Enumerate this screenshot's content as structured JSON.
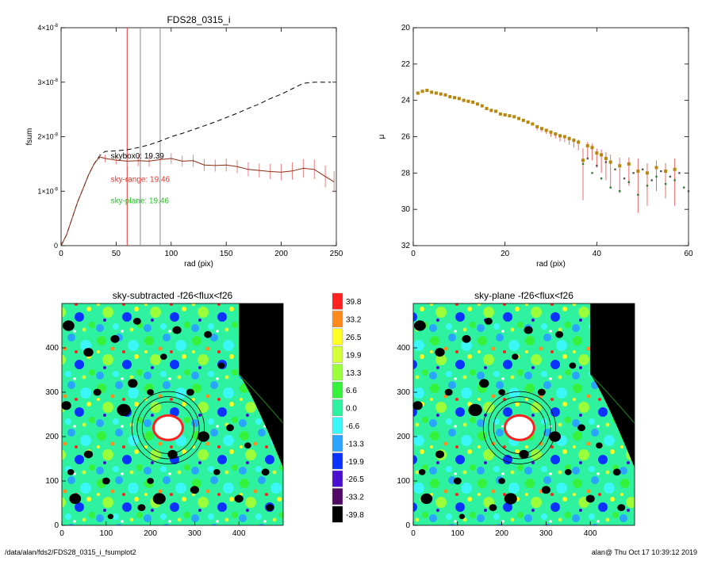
{
  "footer": {
    "path": "/data/alan/fds2/FDS28_0315_i_fsumplot2",
    "stamp": "alan@  Thu Oct 17 10:39:12 2019"
  },
  "chart_data": [
    {
      "type": "line",
      "title": "FDS28_0315_i",
      "xlabel": "rad (pix)",
      "ylabel": "fsum",
      "xlim": [
        0,
        250
      ],
      "ylim": [
        0,
        4e-08
      ],
      "xticks": [
        0,
        50,
        100,
        150,
        200,
        250
      ],
      "yticks": [
        {
          "value": 0,
          "mant": "0",
          "exp": ""
        },
        {
          "value": 1e-08,
          "mant": "1×10",
          "exp": "-8"
        },
        {
          "value": 2e-08,
          "mant": "2×10",
          "exp": "-8"
        },
        {
          "value": 3e-08,
          "mant": "3×10",
          "exp": "-8"
        },
        {
          "value": 4e-08,
          "mant": "4×10",
          "exp": "-8"
        }
      ],
      "vlines": [
        {
          "x": 60,
          "color": "#e8322d"
        },
        {
          "x": 72,
          "color": "#8c8c8c"
        },
        {
          "x": 90,
          "color": "#8c8c8c"
        }
      ],
      "annotations": [
        {
          "text": "skybox0: 19.39",
          "color": "#000000",
          "x": 35,
          "y": 1.6e-08
        },
        {
          "text": "sky-range: 19.46",
          "color": "#e8322d",
          "x": 35,
          "y": 1.17e-08
        },
        {
          "text": "sky-plane: 19.46",
          "color": "#27c327",
          "x": 35,
          "y": 7.8e-09
        }
      ],
      "series": [
        {
          "style": "dashed",
          "color": "#000000",
          "x": [
            0,
            5,
            10,
            15,
            20,
            25,
            30,
            35,
            40,
            50,
            60,
            70,
            80,
            90,
            100,
            110,
            120,
            130,
            140,
            150,
            160,
            170,
            180,
            190,
            200,
            210,
            220,
            230,
            240,
            245
          ],
          "y": [
            0,
            2e-09,
            5e-09,
            8e-09,
            1.05e-08,
            1.3e-08,
            1.5e-08,
            1.65e-08,
            1.73e-08,
            1.74e-08,
            1.76e-08,
            1.8e-08,
            1.85e-08,
            1.92e-08,
            2e-08,
            2.06e-08,
            2.13e-08,
            2.2e-08,
            2.27e-08,
            2.35e-08,
            2.43e-08,
            2.52e-08,
            2.6e-08,
            2.7e-08,
            2.78e-08,
            2.88e-08,
            2.98e-08,
            3e-08,
            3e-08,
            3e-08
          ]
        },
        {
          "style": "solid",
          "color": "#8b2a10",
          "errors": true,
          "error_color": "#f08080",
          "x": [
            0,
            5,
            10,
            15,
            20,
            25,
            30,
            35,
            40,
            50,
            60,
            70,
            80,
            90,
            100,
            110,
            120,
            130,
            140,
            150,
            160,
            170,
            180,
            190,
            200,
            210,
            220,
            230,
            240,
            248
          ],
          "y": [
            0,
            2e-09,
            5e-09,
            8e-09,
            1.05e-08,
            1.3e-08,
            1.5e-08,
            1.63e-08,
            1.6e-08,
            1.57e-08,
            1.55e-08,
            1.56e-08,
            1.55e-08,
            1.58e-08,
            1.6e-08,
            1.55e-08,
            1.56e-08,
            1.48e-08,
            1.47e-08,
            1.48e-08,
            1.45e-08,
            1.4e-08,
            1.38e-08,
            1.36e-08,
            1.35e-08,
            1.37e-08,
            1.42e-08,
            1.4e-08,
            1.27e-08,
            1.17e-08
          ],
          "err": [
            0,
            0,
            0,
            0,
            0,
            0,
            0,
            5e-10,
            7e-10,
            8e-10,
            9e-10,
            1e-09,
            1e-09,
            1e-09,
            1e-09,
            1e-09,
            1.1e-09,
            1.1e-09,
            1.1e-09,
            1.2e-09,
            1.2e-09,
            1.3e-09,
            1.3e-09,
            1.4e-09,
            1.5e-09,
            1.6e-09,
            1.7e-09,
            1.8e-09,
            2e-09,
            2e-09
          ]
        }
      ]
    },
    {
      "type": "scatter",
      "title": "",
      "xlabel": "rad (pix)",
      "ylabel": "μ",
      "xlim": [
        0,
        60
      ],
      "ylim": [
        32,
        20
      ],
      "xticks": [
        0,
        20,
        40,
        60
      ],
      "yticks": [
        20,
        22,
        24,
        26,
        28,
        30,
        32
      ],
      "series": [
        {
          "marker": "square",
          "color": "#b8860b",
          "error_color": "#ee6a6a",
          "x": [
            1,
            2,
            3,
            4,
            5,
            6,
            7,
            8,
            9,
            10,
            11,
            12,
            13,
            14,
            15,
            16,
            17,
            18,
            19,
            20,
            21,
            22,
            23,
            24,
            25,
            26,
            27,
            28,
            29,
            30,
            31,
            32,
            33,
            34,
            35,
            36,
            37,
            38,
            39,
            40,
            41,
            42,
            43,
            45,
            47,
            49,
            51,
            53,
            55,
            57
          ],
          "y": [
            23.6,
            23.5,
            23.45,
            23.55,
            23.6,
            23.65,
            23.7,
            23.8,
            23.85,
            23.9,
            24.0,
            24.05,
            24.1,
            24.2,
            24.3,
            24.45,
            24.55,
            24.6,
            24.75,
            24.8,
            24.85,
            24.9,
            25.0,
            25.1,
            25.2,
            25.3,
            25.45,
            25.55,
            25.65,
            25.75,
            25.85,
            25.95,
            26.0,
            26.1,
            26.2,
            26.3,
            27.3,
            26.5,
            26.6,
            26.9,
            27.0,
            27.2,
            27.4,
            27.6,
            27.5,
            27.9,
            28.0,
            27.7,
            27.9,
            27.8
          ],
          "err": [
            0,
            0,
            0,
            0,
            0,
            0,
            0,
            0,
            0,
            0,
            0,
            0,
            0,
            0,
            0,
            0,
            0,
            0,
            0,
            0,
            0,
            0,
            0,
            0,
            0,
            0,
            0.2,
            0.2,
            0.2,
            0.25,
            0.25,
            0.3,
            0.3,
            0.35,
            0.4,
            0.45,
            2.2,
            0.7,
            0.7,
            0.8,
            1.0,
            1.2,
            1.4,
            1.5,
            1.2,
            2.3,
            1.8,
            1.3,
            1.5,
            2.0
          ]
        },
        {
          "marker": "small",
          "color": "#2e7d32",
          "x": [
            37,
            39,
            41,
            43,
            45,
            47,
            49,
            51,
            53,
            55,
            57,
            59
          ],
          "y": [
            27.5,
            28.0,
            28.3,
            28.8,
            29.0,
            28.5,
            29.2,
            28.7,
            28.2,
            28.6,
            28.4,
            28.8
          ]
        },
        {
          "marker": "small",
          "color": "#555555",
          "x": [
            38,
            40,
            42,
            44,
            46,
            48,
            50,
            52,
            54,
            56,
            58,
            60
          ],
          "y": [
            27.2,
            27.6,
            27.4,
            27.8,
            28.3,
            28.0,
            27.8,
            28.4,
            27.9,
            28.2,
            28.0,
            29.0
          ]
        }
      ]
    },
    {
      "type": "heatmap",
      "title": "sky-subtracted -f26<flux<f26",
      "xlim": [
        0,
        500
      ],
      "ylim": [
        0,
        500
      ],
      "xticks": [
        0,
        100,
        200,
        300,
        400
      ],
      "yticks": [
        0,
        100,
        200,
        300,
        400
      ],
      "center": [
        240,
        220
      ],
      "rings": [
        75,
        90,
        105
      ]
    },
    {
      "type": "heatmap",
      "title": "sky-plane -f26<flux<f26",
      "xlim": [
        0,
        500
      ],
      "ylim": [
        0,
        500
      ],
      "xticks": [
        0,
        100,
        200,
        300,
        400
      ],
      "yticks": [
        0,
        100,
        200,
        300,
        400
      ],
      "center": [
        240,
        220
      ],
      "rings": [
        75,
        90,
        105
      ]
    },
    {
      "type": "colorbar",
      "levels": [
        {
          "label": "39.8",
          "color": "#ff2020"
        },
        {
          "label": "33.2",
          "color": "#ff8a1c"
        },
        {
          "label": "26.5",
          "color": "#ffff24"
        },
        {
          "label": "19.9",
          "color": "#d6ff3a"
        },
        {
          "label": "13.3",
          "color": "#9cff3c"
        },
        {
          "label": "6.6",
          "color": "#36f23c"
        },
        {
          "label": "0.0",
          "color": "#2ef2a0"
        },
        {
          "label": "-6.6",
          "color": "#3cf7f7"
        },
        {
          "label": "-13.3",
          "color": "#2aa4ff"
        },
        {
          "label": "-19.9",
          "color": "#0c32ff"
        },
        {
          "label": "-26.5",
          "color": "#4a0fd0"
        },
        {
          "label": "-33.2",
          "color": "#500a66"
        },
        {
          "label": "-39.8",
          "color": "#000000"
        }
      ]
    }
  ]
}
